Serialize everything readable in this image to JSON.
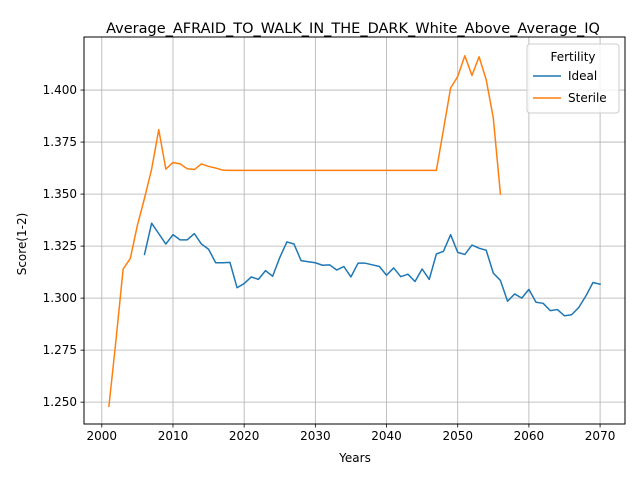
{
  "chart_data": {
    "type": "line",
    "title": "Average_AFRAID_TO_WALK_IN_THE_DARK_White_Above_Average_IQ",
    "xlabel": "Years",
    "ylabel": "Score(1-2)",
    "xlim": [
      1997.5,
      2073.5
    ],
    "ylim": [
      1.2395,
      1.4255
    ],
    "xticks": [
      2000,
      2010,
      2020,
      2030,
      2040,
      2050,
      2060,
      2070
    ],
    "yticks": [
      1.25,
      1.275,
      1.3,
      1.325,
      1.35,
      1.375,
      1.4
    ],
    "ytick_labels": [
      "1.250",
      "1.275",
      "1.300",
      "1.325",
      "1.350",
      "1.375",
      "1.400"
    ],
    "grid": true,
    "legend": {
      "title": "Fertility",
      "position": "top-right"
    },
    "series": [
      {
        "name": "Ideal",
        "color": "#1f77b4",
        "x": [
          2006,
          2007,
          2008,
          2009,
          2010,
          2011,
          2012,
          2013,
          2014,
          2015,
          2016,
          2017,
          2018,
          2019,
          2020,
          2021,
          2022,
          2023,
          2024,
          2025,
          2026,
          2027,
          2028,
          2029,
          2030,
          2031,
          2032,
          2033,
          2034,
          2035,
          2036,
          2037,
          2038,
          2039,
          2040,
          2041,
          2042,
          2043,
          2044,
          2045,
          2046,
          2047,
          2048,
          2049,
          2050,
          2051,
          2052,
          2053,
          2054,
          2055,
          2056,
          2057,
          2058,
          2059,
          2060,
          2061,
          2062,
          2063,
          2064,
          2065,
          2066,
          2067,
          2068,
          2069,
          2070
        ],
        "y": [
          1.321,
          1.336,
          1.331,
          1.326,
          1.3305,
          1.328,
          1.328,
          1.331,
          1.326,
          1.3235,
          1.317,
          1.317,
          1.3172,
          1.305,
          1.307,
          1.3102,
          1.309,
          1.3132,
          1.3105,
          1.3195,
          1.327,
          1.326,
          1.318,
          1.3175,
          1.317,
          1.3158,
          1.316,
          1.3135,
          1.3152,
          1.3102,
          1.3168,
          1.3168,
          1.316,
          1.3152,
          1.311,
          1.3145,
          1.3103,
          1.3115,
          1.308,
          1.314,
          1.309,
          1.3212,
          1.3225,
          1.3305,
          1.322,
          1.321,
          1.3255,
          1.324,
          1.323,
          1.312,
          1.3085,
          1.2985,
          1.302,
          1.3,
          1.3042,
          1.298,
          1.2975,
          1.294,
          1.2945,
          1.2915,
          1.292,
          1.2955,
          1.301,
          1.3075,
          1.3067
        ]
      },
      {
        "name": "Sterile",
        "color": "#ff7f0e",
        "x": [
          2001,
          2002,
          2003,
          2004,
          2005,
          2006,
          2007,
          2008,
          2009,
          2010,
          2011,
          2012,
          2013,
          2014,
          2015,
          2016,
          2017,
          2018,
          2019,
          2020,
          2021,
          2022,
          2023,
          2024,
          2025,
          2026,
          2027,
          2028,
          2029,
          2030,
          2031,
          2032,
          2033,
          2034,
          2035,
          2036,
          2037,
          2038,
          2039,
          2040,
          2041,
          2042,
          2043,
          2044,
          2045,
          2046,
          2047,
          2048,
          2049,
          2050,
          2051,
          2052,
          2053,
          2054,
          2055,
          2056
        ],
        "y": [
          1.248,
          1.28,
          1.314,
          1.319,
          1.335,
          1.348,
          1.362,
          1.381,
          1.362,
          1.3652,
          1.3645,
          1.3622,
          1.3618,
          1.3645,
          1.3633,
          1.3625,
          1.3615,
          1.3614,
          1.3614,
          1.3614,
          1.3614,
          1.3614,
          1.3614,
          1.3614,
          1.3614,
          1.3614,
          1.3614,
          1.3614,
          1.3614,
          1.3614,
          1.3614,
          1.3614,
          1.3614,
          1.3614,
          1.3614,
          1.3614,
          1.3614,
          1.3614,
          1.3614,
          1.3614,
          1.3614,
          1.3614,
          1.3614,
          1.3614,
          1.3614,
          1.3614,
          1.3614,
          1.381,
          1.401,
          1.4065,
          1.4165,
          1.407,
          1.416,
          1.405,
          1.3865,
          1.35
        ]
      }
    ]
  }
}
